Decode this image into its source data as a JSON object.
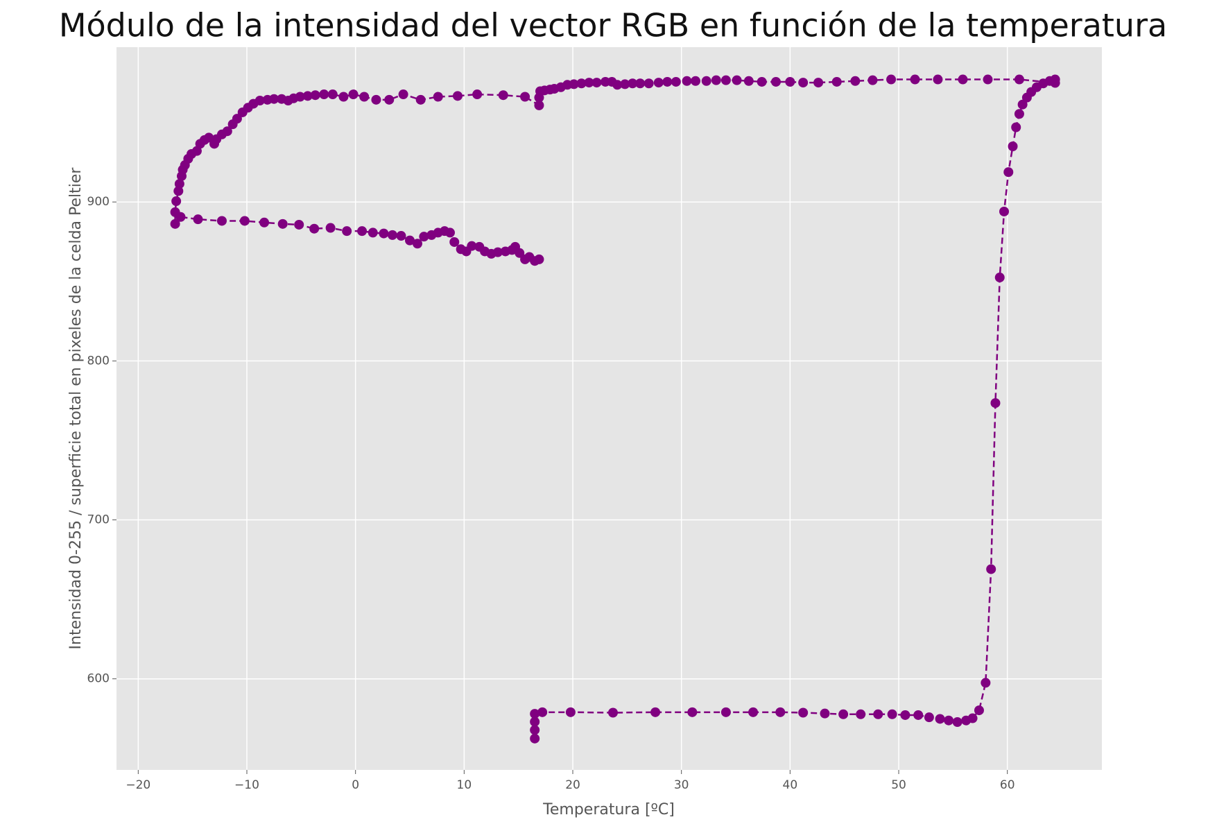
{
  "chart_data": {
    "type": "line",
    "title": "Módulo de la intensidad del vector RGB en función de la temperatura",
    "xlabel": "Temperatura [ºC]",
    "ylabel": "Intensidad 0-255 / superficie total en pixeles de la celda Peltier",
    "xlim": [
      -22.0,
      68.7
    ],
    "ylim": [
      542.7,
      997.4
    ],
    "xticks": [
      {
        "value": -20,
        "label": "−20"
      },
      {
        "value": -10,
        "label": "−10"
      },
      0,
      10,
      20,
      30,
      40,
      50,
      60
    ],
    "yticks": [
      600,
      700,
      800,
      900
    ],
    "grid": true,
    "linestyle": "dashed",
    "marker": "circle",
    "series": [
      {
        "color": "#800080",
        "x": [
          16.5,
          16.5,
          16.5,
          16.5,
          17.2,
          19.8,
          23.7,
          27.6,
          31.0,
          34.1,
          36.6,
          39.1,
          41.2,
          43.2,
          44.9,
          46.5,
          48.1,
          49.4,
          50.6,
          51.8,
          52.8,
          53.8,
          54.6,
          55.4,
          56.2,
          56.8,
          57.4,
          58.0,
          58.5,
          58.9,
          59.3,
          59.7,
          60.1,
          60.5,
          60.8,
          61.1,
          61.4,
          61.8,
          62.2,
          62.7,
          63.3,
          63.9,
          64.4,
          64.4,
          61.1,
          58.2,
          55.9,
          53.6,
          51.5,
          49.3,
          47.6,
          46.0,
          44.3,
          42.6,
          41.2,
          40.0,
          38.7,
          37.4,
          36.2,
          35.1,
          34.1,
          33.2,
          32.3,
          31.3,
          30.5,
          29.5,
          28.7,
          27.9,
          27.0,
          26.2,
          25.5,
          24.8,
          24.1,
          23.6,
          23.0,
          22.2,
          21.5,
          20.8,
          20.1,
          19.5,
          18.9,
          18.3,
          17.9,
          17.4,
          17.0,
          16.9,
          16.9,
          15.6,
          13.6,
          11.2,
          9.4,
          7.6,
          6.0,
          4.4,
          3.1,
          1.9,
          0.8,
          -0.2,
          -1.1,
          -2.1,
          -2.9,
          -3.7,
          -4.4,
          -5.1,
          -5.7,
          -6.2,
          -6.8,
          -7.5,
          -8.1,
          -8.8,
          -9.4,
          -9.9,
          -10.4,
          -10.9,
          -11.3,
          -11.8,
          -12.3,
          -12.8,
          -13.0,
          -13.5,
          -13.9,
          -14.3,
          -14.6,
          -15.1,
          -15.4,
          -15.7,
          -15.9,
          -16.0,
          -16.2,
          -16.3,
          -16.5,
          -16.6,
          -16.6,
          -16.1,
          -14.5,
          -12.3,
          -10.2,
          -8.4,
          -6.7,
          -5.2,
          -3.8,
          -2.3,
          -0.8,
          0.6,
          1.6,
          2.6,
          3.4,
          4.2,
          5.0,
          5.7,
          6.3,
          7.0,
          7.6,
          8.2,
          8.7,
          9.1,
          9.7,
          10.2,
          10.7,
          11.4,
          11.9,
          12.5,
          13.1,
          13.8,
          14.4,
          14.7,
          15.1,
          15.6,
          16.0,
          16.5,
          16.9
        ],
        "values": [
          562.4,
          567.8,
          573.0,
          578.0,
          579.0,
          579.0,
          578.7,
          579.0,
          579.0,
          579.0,
          579.0,
          579.0,
          578.7,
          578.2,
          577.7,
          577.7,
          577.7,
          577.7,
          577.2,
          577.2,
          575.8,
          574.8,
          573.8,
          572.8,
          573.8,
          575.2,
          580.2,
          597.5,
          669.0,
          773.5,
          852.5,
          894.0,
          918.8,
          935.0,
          947.0,
          955.4,
          961.3,
          965.7,
          969.2,
          972.2,
          974.6,
          976.1,
          977.1,
          974.9,
          977.1,
          977.1,
          977.1,
          977.1,
          977.1,
          977.1,
          976.6,
          976.1,
          975.6,
          975.1,
          975.1,
          975.6,
          975.6,
          975.6,
          976.1,
          976.6,
          976.6,
          976.6,
          976.1,
          976.1,
          976.1,
          975.6,
          975.6,
          975.1,
          974.6,
          974.6,
          974.6,
          974.1,
          973.7,
          975.6,
          975.6,
          975.1,
          975.1,
          974.6,
          974.1,
          973.7,
          972.2,
          971.2,
          970.7,
          970.2,
          969.7,
          965.7,
          960.8,
          966.2,
          967.2,
          967.7,
          966.7,
          966.2,
          964.3,
          967.7,
          964.3,
          964.3,
          966.2,
          967.7,
          966.2,
          967.7,
          967.7,
          967.2,
          966.7,
          966.2,
          965.2,
          963.8,
          964.8,
          964.8,
          964.3,
          963.8,
          961.8,
          959.3,
          956.4,
          952.4,
          948.9,
          944.5,
          942.5,
          939.5,
          936.6,
          940.5,
          939.0,
          936.6,
          932.1,
          930.2,
          927.2,
          923.2,
          920.3,
          916.3,
          911.4,
          906.9,
          900.5,
          893.6,
          886.2,
          890.6,
          889.1,
          888.1,
          888.1,
          887.1,
          886.2,
          885.7,
          883.2,
          883.7,
          881.7,
          881.7,
          880.7,
          880.2,
          879.2,
          878.7,
          875.8,
          873.8,
          878.2,
          879.2,
          880.7,
          881.7,
          880.7,
          874.8,
          870.3,
          868.9,
          872.3,
          871.8,
          868.9,
          867.4,
          868.4,
          868.9,
          869.8,
          871.8,
          867.9,
          863.9,
          865.4,
          862.9,
          863.9
        ]
      }
    ]
  }
}
